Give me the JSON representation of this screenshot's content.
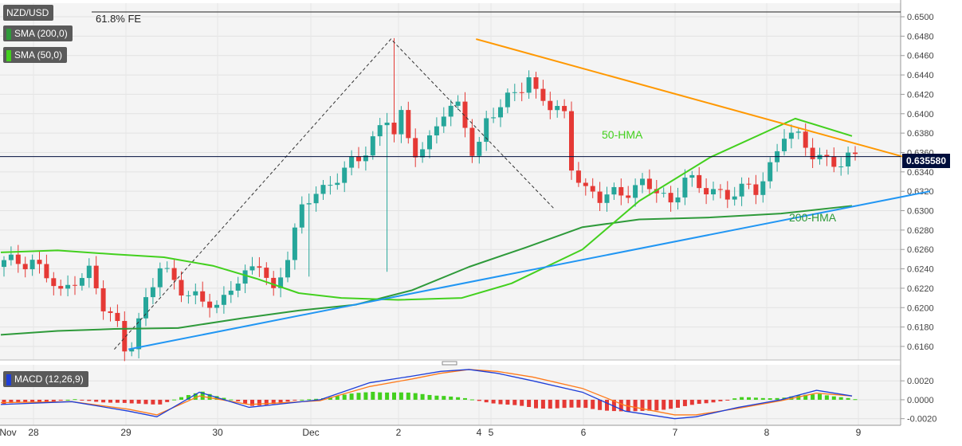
{
  "header": {
    "symbol": "NZD/USD",
    "indicators": [
      "SMA (200,0)",
      "SMA (50,0)"
    ],
    "macd_label": "MACD (12,26,9)",
    "fib_label": "61.8% FE",
    "current_price": "0.635580"
  },
  "colors": {
    "up_candle": "#26a69a",
    "down_candle": "#e53935",
    "hma50": "#43d01e",
    "hma200": "#2e9a3a",
    "upper_trendline": "#ff9800",
    "lower_trendline": "#2196f3",
    "macd_line": "#1e3ed8",
    "signal_line": "#ff7a1a",
    "hist_pos": "#43d01e",
    "hist_neg": "#e53935",
    "price_box": "#000e3c"
  },
  "chart_data": [
    {
      "type": "candlestick",
      "title": "NZD/USD",
      "x_tick_labels": [
        "Nov",
        "28",
        "29",
        "30",
        "Dec",
        "2",
        "4",
        "5",
        "6",
        "7",
        "8",
        "9"
      ],
      "y_tick_labels": [
        "0.6500",
        "0.6480",
        "0.6460",
        "0.6440",
        "0.6420",
        "0.6400",
        "0.6380",
        "0.6360",
        "0.6340",
        "0.6320",
        "0.6300",
        "0.6280",
        "0.6260",
        "0.6240",
        "0.6220",
        "0.6200",
        "0.6180",
        "0.6160"
      ],
      "ylim": [
        0.6146,
        0.6514
      ],
      "current_price": 0.63558,
      "series": [
        {
          "name": "50-HMA",
          "x": [
            0,
            8,
            16,
            23,
            30,
            36,
            42,
            48,
            56,
            65,
            72,
            82,
            90,
            100,
            112,
            120
          ],
          "y": [
            0.6257,
            0.6259,
            0.6255,
            0.6252,
            0.6243,
            0.623,
            0.6215,
            0.621,
            0.6208,
            0.621,
            0.6225,
            0.626,
            0.631,
            0.6355,
            0.6395,
            0.6377
          ]
        },
        {
          "name": "200-HMA",
          "x": [
            0,
            8,
            16,
            25,
            34,
            42,
            50,
            58,
            66,
            74,
            82,
            90,
            100,
            110,
            120
          ],
          "y": [
            0.6172,
            0.6176,
            0.6178,
            0.6179,
            0.6189,
            0.6197,
            0.6203,
            0.6218,
            0.6242,
            0.6262,
            0.6283,
            0.6291,
            0.6293,
            0.6297,
            0.6305
          ]
        }
      ],
      "trendlines": [
        {
          "name": "upper",
          "from": [
            67,
            0.6477
          ],
          "to": [
            131,
            0.6348
          ]
        },
        {
          "name": "lower",
          "from": [
            18,
            0.6157
          ],
          "to": [
            131,
            0.632
          ]
        }
      ],
      "annotations": [
        "61.8% FE",
        "50-HMA",
        "200-HMA"
      ]
    },
    {
      "type": "line",
      "title": "MACD (12,26,9)",
      "y_tick_labels": [
        "0.0020",
        "0.0000",
        "-0.0020"
      ],
      "ylim": [
        -0.0027,
        0.0037
      ],
      "series": [
        {
          "name": "MACD",
          "x": [
            0,
            10,
            18,
            22,
            28,
            35,
            45,
            52,
            58,
            62,
            66,
            70,
            75,
            82,
            88,
            95,
            98,
            104,
            110,
            115,
            120
          ],
          "y": [
            -0.0005,
            -0.0002,
            -0.0012,
            -0.0018,
            0.0008,
            -0.0008,
            0.0,
            0.0018,
            0.0025,
            0.003,
            0.0032,
            0.0028,
            0.002,
            0.0008,
            -0.0012,
            -0.002,
            -0.0018,
            -0.0008,
            0.0,
            0.001,
            0.0004
          ]
        },
        {
          "name": "Signal",
          "x": [
            0,
            10,
            18,
            22,
            28,
            35,
            45,
            52,
            58,
            62,
            66,
            70,
            75,
            82,
            88,
            95,
            98,
            104,
            110,
            115,
            120
          ],
          "y": [
            -0.0003,
            -0.0002,
            -0.001,
            -0.0016,
            0.0004,
            -0.0005,
            -0.0001,
            0.0014,
            0.0022,
            0.0028,
            0.0032,
            0.003,
            0.0024,
            0.0012,
            -0.0006,
            -0.0016,
            -0.0016,
            -0.0009,
            -0.0001,
            0.0007,
            0.0004
          ]
        }
      ]
    }
  ]
}
